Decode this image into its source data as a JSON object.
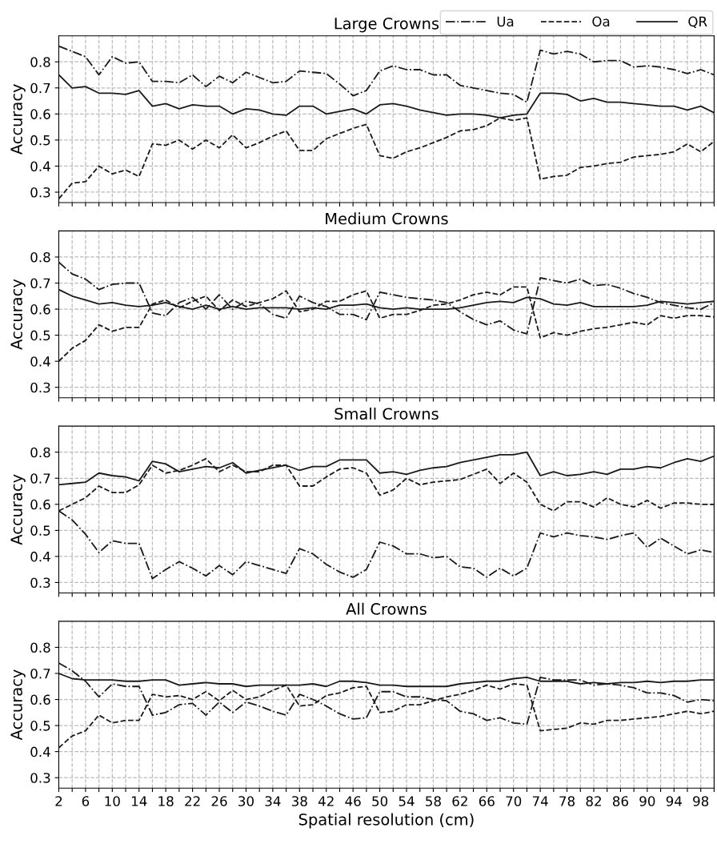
{
  "chart_data": [
    {
      "type": "line",
      "title": "Large Crowns",
      "ylabel": "Accuracy",
      "legend": "top right",
      "grid": true,
      "tick_labels": "y",
      "xlim": [
        2,
        100
      ],
      "ylim": [
        0.26,
        0.9
      ],
      "yticks": [
        0.3,
        0.4,
        0.5,
        0.6,
        0.7,
        0.8
      ],
      "x": [
        2,
        4,
        6,
        8,
        10,
        12,
        14,
        16,
        18,
        20,
        22,
        24,
        26,
        28,
        30,
        32,
        34,
        36,
        38,
        40,
        42,
        44,
        46,
        48,
        50,
        52,
        54,
        56,
        58,
        60,
        62,
        64,
        66,
        68,
        70,
        72,
        74,
        76,
        78,
        80,
        82,
        84,
        86,
        88,
        90,
        92,
        94,
        96,
        98,
        100
      ],
      "xticks": [
        2,
        {
          "value": 4,
          "label": null
        },
        6,
        {
          "value": 8,
          "label": null
        },
        10,
        {
          "value": 12,
          "label": null
        },
        14,
        {
          "value": 16,
          "label": null
        },
        18,
        {
          "value": 20,
          "label": null
        },
        22,
        {
          "value": 24,
          "label": null
        },
        26,
        {
          "value": 28,
          "label": null
        },
        30,
        {
          "value": 32,
          "label": null
        },
        34,
        {
          "value": 36,
          "label": null
        },
        38,
        {
          "value": 40,
          "label": null
        },
        42,
        {
          "value": 44,
          "label": null
        },
        46,
        {
          "value": 48,
          "label": null
        },
        50,
        {
          "value": 52,
          "label": null
        },
        54,
        {
          "value": 56,
          "label": null
        },
        58,
        {
          "value": 60,
          "label": null
        },
        62,
        {
          "value": 64,
          "label": null
        },
        66,
        {
          "value": 68,
          "label": null
        },
        70,
        {
          "value": 72,
          "label": null
        },
        74,
        {
          "value": 76,
          "label": null
        },
        78,
        {
          "value": 80,
          "label": null
        },
        82,
        {
          "value": 84,
          "label": null
        },
        86,
        {
          "value": 88,
          "label": null
        },
        90,
        {
          "value": 92,
          "label": null
        },
        94,
        {
          "value": 96,
          "label": null
        },
        98,
        {
          "value": 100,
          "label": null
        }
      ],
      "series": [
        {
          "name": "Ua",
          "color": "#1a1a1a",
          "line_style": "dashdot",
          "values": [
            0.86,
            0.84,
            0.82,
            0.75,
            0.82,
            0.795,
            0.8,
            0.725,
            0.725,
            0.72,
            0.75,
            0.705,
            0.745,
            0.72,
            0.76,
            0.74,
            0.72,
            0.725,
            0.765,
            0.76,
            0.755,
            0.715,
            0.67,
            0.69,
            0.765,
            0.785,
            0.77,
            0.77,
            0.75,
            0.75,
            0.71,
            0.7,
            0.69,
            0.68,
            0.675,
            0.645,
            0.845,
            0.83,
            0.84,
            0.83,
            0.8,
            0.805,
            0.805,
            0.78,
            0.785,
            0.78,
            0.77,
            0.755,
            0.77,
            0.75
          ]
        },
        {
          "name": "Oa",
          "color": "#1a1a1a",
          "line_style": "dashed",
          "values": [
            0.275,
            0.335,
            0.34,
            0.4,
            0.37,
            0.385,
            0.36,
            0.485,
            0.48,
            0.5,
            0.465,
            0.5,
            0.47,
            0.52,
            0.47,
            0.49,
            0.515,
            0.535,
            0.46,
            0.46,
            0.505,
            0.525,
            0.545,
            0.56,
            0.44,
            0.43,
            0.455,
            0.47,
            0.49,
            0.51,
            0.535,
            0.54,
            0.555,
            0.585,
            0.575,
            0.585,
            0.35,
            0.36,
            0.365,
            0.395,
            0.4,
            0.41,
            0.415,
            0.435,
            0.44,
            0.445,
            0.455,
            0.485,
            0.455,
            0.495
          ]
        },
        {
          "name": "QR",
          "color": "#1a1a1a",
          "line_style": "solid",
          "values": [
            0.75,
            0.7,
            0.705,
            0.68,
            0.68,
            0.675,
            0.69,
            0.63,
            0.64,
            0.62,
            0.635,
            0.63,
            0.63,
            0.6,
            0.62,
            0.615,
            0.6,
            0.595,
            0.63,
            0.63,
            0.6,
            0.61,
            0.62,
            0.6,
            0.635,
            0.64,
            0.63,
            0.615,
            0.605,
            0.595,
            0.6,
            0.6,
            0.595,
            0.585,
            0.595,
            0.6,
            0.68,
            0.68,
            0.675,
            0.65,
            0.66,
            0.645,
            0.645,
            0.64,
            0.635,
            0.63,
            0.63,
            0.615,
            0.63,
            0.605
          ]
        }
      ]
    },
    {
      "type": "line",
      "title": "Medium Crowns",
      "ylabel": "Accuracy",
      "grid": true,
      "tick_labels": "y",
      "xlim": [
        2,
        100
      ],
      "ylim": [
        0.26,
        0.9
      ],
      "yticks": [
        0.3,
        0.4,
        0.5,
        0.6,
        0.7,
        0.8
      ],
      "x": [
        2,
        4,
        6,
        8,
        10,
        12,
        14,
        16,
        18,
        20,
        22,
        24,
        26,
        28,
        30,
        32,
        34,
        36,
        38,
        40,
        42,
        44,
        46,
        48,
        50,
        52,
        54,
        56,
        58,
        60,
        62,
        64,
        66,
        68,
        70,
        72,
        74,
        76,
        78,
        80,
        82,
        84,
        86,
        88,
        90,
        92,
        94,
        96,
        98,
        100
      ],
      "xticks": [
        2,
        {
          "value": 4,
          "label": null
        },
        6,
        {
          "value": 8,
          "label": null
        },
        10,
        {
          "value": 12,
          "label": null
        },
        14,
        {
          "value": 16,
          "label": null
        },
        18,
        {
          "value": 20,
          "label": null
        },
        22,
        {
          "value": 24,
          "label": null
        },
        26,
        {
          "value": 28,
          "label": null
        },
        30,
        {
          "value": 32,
          "label": null
        },
        34,
        {
          "value": 36,
          "label": null
        },
        38,
        {
          "value": 40,
          "label": null
        },
        42,
        {
          "value": 44,
          "label": null
        },
        46,
        {
          "value": 48,
          "label": null
        },
        50,
        {
          "value": 52,
          "label": null
        },
        54,
        {
          "value": 56,
          "label": null
        },
        58,
        {
          "value": 60,
          "label": null
        },
        62,
        {
          "value": 64,
          "label": null
        },
        66,
        {
          "value": 68,
          "label": null
        },
        70,
        {
          "value": 72,
          "label": null
        },
        74,
        {
          "value": 76,
          "label": null
        },
        78,
        {
          "value": 80,
          "label": null
        },
        82,
        {
          "value": 84,
          "label": null
        },
        86,
        {
          "value": 88,
          "label": null
        },
        90,
        {
          "value": 92,
          "label": null
        },
        94,
        {
          "value": 96,
          "label": null
        },
        98,
        {
          "value": 100,
          "label": null
        }
      ],
      "series": [
        {
          "color": "#1a1a1a",
          "line_style": "dashdot",
          "values": [
            0.78,
            0.735,
            0.715,
            0.675,
            0.695,
            0.7,
            0.7,
            0.585,
            0.575,
            0.625,
            0.645,
            0.6,
            0.655,
            0.6,
            0.63,
            0.62,
            0.58,
            0.565,
            0.65,
            0.625,
            0.61,
            0.58,
            0.58,
            0.56,
            0.665,
            0.655,
            0.645,
            0.64,
            0.635,
            0.625,
            0.59,
            0.56,
            0.54,
            0.555,
            0.52,
            0.505,
            0.72,
            0.71,
            0.7,
            0.715,
            0.69,
            0.695,
            0.68,
            0.66,
            0.645,
            0.625,
            0.615,
            0.605,
            0.6,
            0.625
          ]
        },
        {
          "color": "#1a1a1a",
          "line_style": "dashed",
          "values": [
            0.4,
            0.45,
            0.48,
            0.54,
            0.515,
            0.53,
            0.53,
            0.62,
            0.635,
            0.605,
            0.63,
            0.65,
            0.595,
            0.635,
            0.61,
            0.625,
            0.64,
            0.67,
            0.59,
            0.6,
            0.63,
            0.63,
            0.655,
            0.67,
            0.565,
            0.58,
            0.58,
            0.595,
            0.615,
            0.62,
            0.635,
            0.655,
            0.665,
            0.655,
            0.685,
            0.685,
            0.49,
            0.51,
            0.5,
            0.515,
            0.525,
            0.53,
            0.54,
            0.55,
            0.54,
            0.575,
            0.565,
            0.575,
            0.575,
            0.57
          ]
        },
        {
          "color": "#1a1a1a",
          "line_style": "solid",
          "values": [
            0.675,
            0.65,
            0.635,
            0.62,
            0.625,
            0.615,
            0.61,
            0.615,
            0.625,
            0.61,
            0.6,
            0.615,
            0.6,
            0.61,
            0.6,
            0.605,
            0.605,
            0.605,
            0.6,
            0.605,
            0.6,
            0.615,
            0.615,
            0.62,
            0.605,
            0.6,
            0.605,
            0.6,
            0.6,
            0.6,
            0.605,
            0.615,
            0.625,
            0.63,
            0.625,
            0.645,
            0.64,
            0.62,
            0.615,
            0.625,
            0.61,
            0.61,
            0.61,
            0.61,
            0.615,
            0.63,
            0.625,
            0.62,
            0.625,
            0.63
          ]
        }
      ]
    },
    {
      "type": "line",
      "title": "Small Crowns",
      "ylabel": "Accuracy",
      "grid": true,
      "tick_labels": "y",
      "xlim": [
        2,
        100
      ],
      "ylim": [
        0.26,
        0.9
      ],
      "yticks": [
        0.3,
        0.4,
        0.5,
        0.6,
        0.7,
        0.8
      ],
      "x": [
        2,
        4,
        6,
        8,
        10,
        12,
        14,
        16,
        18,
        20,
        22,
        24,
        26,
        28,
        30,
        32,
        34,
        36,
        38,
        40,
        42,
        44,
        46,
        48,
        50,
        52,
        54,
        56,
        58,
        60,
        62,
        64,
        66,
        68,
        70,
        72,
        74,
        76,
        78,
        80,
        82,
        84,
        86,
        88,
        90,
        92,
        94,
        96,
        98,
        100
      ],
      "xticks": [
        2,
        {
          "value": 4,
          "label": null
        },
        6,
        {
          "value": 8,
          "label": null
        },
        10,
        {
          "value": 12,
          "label": null
        },
        14,
        {
          "value": 16,
          "label": null
        },
        18,
        {
          "value": 20,
          "label": null
        },
        22,
        {
          "value": 24,
          "label": null
        },
        26,
        {
          "value": 28,
          "label": null
        },
        30,
        {
          "value": 32,
          "label": null
        },
        34,
        {
          "value": 36,
          "label": null
        },
        38,
        {
          "value": 40,
          "label": null
        },
        42,
        {
          "value": 44,
          "label": null
        },
        46,
        {
          "value": 48,
          "label": null
        },
        50,
        {
          "value": 52,
          "label": null
        },
        54,
        {
          "value": 56,
          "label": null
        },
        58,
        {
          "value": 60,
          "label": null
        },
        62,
        {
          "value": 64,
          "label": null
        },
        66,
        {
          "value": 68,
          "label": null
        },
        70,
        {
          "value": 72,
          "label": null
        },
        74,
        {
          "value": 76,
          "label": null
        },
        78,
        {
          "value": 80,
          "label": null
        },
        82,
        {
          "value": 84,
          "label": null
        },
        86,
        {
          "value": 88,
          "label": null
        },
        90,
        {
          "value": 92,
          "label": null
        },
        94,
        {
          "value": 96,
          "label": null
        },
        98,
        {
          "value": 100,
          "label": null
        }
      ],
      "series": [
        {
          "color": "#1a1a1a",
          "line_style": "dashdot",
          "values": [
            0.575,
            0.54,
            0.485,
            0.415,
            0.46,
            0.45,
            0.45,
            0.315,
            0.35,
            0.38,
            0.355,
            0.325,
            0.365,
            0.33,
            0.38,
            0.365,
            0.35,
            0.335,
            0.43,
            0.41,
            0.37,
            0.34,
            0.32,
            0.35,
            0.455,
            0.44,
            0.41,
            0.41,
            0.395,
            0.4,
            0.36,
            0.355,
            0.32,
            0.355,
            0.325,
            0.355,
            0.49,
            0.475,
            0.49,
            0.48,
            0.475,
            0.465,
            0.48,
            0.49,
            0.435,
            0.47,
            0.44,
            0.41,
            0.425,
            0.415
          ]
        },
        {
          "color": "#1a1a1a",
          "line_style": "dashed",
          "values": [
            0.575,
            0.6,
            0.625,
            0.67,
            0.645,
            0.645,
            0.675,
            0.75,
            0.72,
            0.73,
            0.75,
            0.775,
            0.725,
            0.75,
            0.725,
            0.725,
            0.75,
            0.75,
            0.67,
            0.67,
            0.705,
            0.735,
            0.74,
            0.72,
            0.635,
            0.655,
            0.7,
            0.675,
            0.685,
            0.69,
            0.695,
            0.715,
            0.735,
            0.68,
            0.72,
            0.685,
            0.6,
            0.575,
            0.61,
            0.61,
            0.59,
            0.625,
            0.6,
            0.59,
            0.615,
            0.585,
            0.605,
            0.605,
            0.6,
            0.6
          ]
        },
        {
          "color": "#1a1a1a",
          "line_style": "solid",
          "values": [
            0.675,
            0.68,
            0.685,
            0.72,
            0.71,
            0.705,
            0.69,
            0.765,
            0.755,
            0.725,
            0.735,
            0.745,
            0.74,
            0.76,
            0.72,
            0.73,
            0.74,
            0.75,
            0.73,
            0.745,
            0.745,
            0.77,
            0.77,
            0.77,
            0.72,
            0.725,
            0.715,
            0.73,
            0.74,
            0.745,
            0.76,
            0.77,
            0.78,
            0.79,
            0.79,
            0.8,
            0.71,
            0.725,
            0.71,
            0.715,
            0.725,
            0.715,
            0.735,
            0.735,
            0.745,
            0.74,
            0.76,
            0.775,
            0.765,
            0.785
          ]
        }
      ]
    },
    {
      "type": "line",
      "title": "All Crowns",
      "xlabel": "Spatial resolution (cm)",
      "ylabel": "Accuracy",
      "grid": true,
      "xlim": [
        2,
        100
      ],
      "ylim": [
        0.26,
        0.9
      ],
      "yticks": [
        0.3,
        0.4,
        0.5,
        0.6,
        0.7,
        0.8
      ],
      "x": [
        2,
        4,
        6,
        8,
        10,
        12,
        14,
        16,
        18,
        20,
        22,
        24,
        26,
        28,
        30,
        32,
        34,
        36,
        38,
        40,
        42,
        44,
        46,
        48,
        50,
        52,
        54,
        56,
        58,
        60,
        62,
        64,
        66,
        68,
        70,
        72,
        74,
        76,
        78,
        80,
        82,
        84,
        86,
        88,
        90,
        92,
        94,
        96,
        98,
        100
      ],
      "xticks": [
        2,
        {
          "value": 4,
          "label": null
        },
        6,
        {
          "value": 8,
          "label": null
        },
        10,
        {
          "value": 12,
          "label": null
        },
        14,
        {
          "value": 16,
          "label": null
        },
        18,
        {
          "value": 20,
          "label": null
        },
        22,
        {
          "value": 24,
          "label": null
        },
        26,
        {
          "value": 28,
          "label": null
        },
        30,
        {
          "value": 32,
          "label": null
        },
        34,
        {
          "value": 36,
          "label": null
        },
        38,
        {
          "value": 40,
          "label": null
        },
        42,
        {
          "value": 44,
          "label": null
        },
        46,
        {
          "value": 48,
          "label": null
        },
        50,
        {
          "value": 52,
          "label": null
        },
        54,
        {
          "value": 56,
          "label": null
        },
        58,
        {
          "value": 60,
          "label": null
        },
        62,
        {
          "value": 64,
          "label": null
        },
        66,
        {
          "value": 68,
          "label": null
        },
        70,
        {
          "value": 72,
          "label": null
        },
        74,
        {
          "value": 76,
          "label": null
        },
        78,
        {
          "value": 80,
          "label": null
        },
        82,
        {
          "value": 84,
          "label": null
        },
        86,
        {
          "value": 88,
          "label": null
        },
        90,
        {
          "value": 92,
          "label": null
        },
        94,
        {
          "value": 96,
          "label": null
        },
        98,
        {
          "value": 100,
          "label": null
        }
      ],
      "series": [
        {
          "color": "#1a1a1a",
          "line_style": "dashdot",
          "values": [
            0.74,
            0.71,
            0.67,
            0.61,
            0.66,
            0.65,
            0.65,
            0.54,
            0.55,
            0.58,
            0.585,
            0.54,
            0.59,
            0.55,
            0.59,
            0.575,
            0.555,
            0.54,
            0.62,
            0.6,
            0.575,
            0.545,
            0.525,
            0.53,
            0.63,
            0.63,
            0.61,
            0.61,
            0.6,
            0.595,
            0.555,
            0.545,
            0.52,
            0.53,
            0.51,
            0.505,
            0.685,
            0.675,
            0.675,
            0.675,
            0.655,
            0.66,
            0.655,
            0.645,
            0.625,
            0.625,
            0.615,
            0.59,
            0.6,
            0.595
          ]
        },
        {
          "color": "#1a1a1a",
          "line_style": "dashed",
          "values": [
            0.415,
            0.46,
            0.48,
            0.54,
            0.51,
            0.52,
            0.52,
            0.62,
            0.61,
            0.615,
            0.6,
            0.63,
            0.595,
            0.635,
            0.6,
            0.61,
            0.635,
            0.655,
            0.575,
            0.58,
            0.615,
            0.625,
            0.645,
            0.65,
            0.55,
            0.555,
            0.58,
            0.58,
            0.595,
            0.61,
            0.62,
            0.635,
            0.655,
            0.64,
            0.66,
            0.655,
            0.48,
            0.485,
            0.49,
            0.51,
            0.505,
            0.52,
            0.52,
            0.525,
            0.53,
            0.535,
            0.545,
            0.555,
            0.545,
            0.555
          ]
        },
        {
          "color": "#1a1a1a",
          "line_style": "solid",
          "values": [
            0.7,
            0.68,
            0.675,
            0.675,
            0.675,
            0.67,
            0.67,
            0.675,
            0.675,
            0.655,
            0.66,
            0.665,
            0.66,
            0.66,
            0.65,
            0.655,
            0.655,
            0.655,
            0.655,
            0.66,
            0.65,
            0.67,
            0.67,
            0.665,
            0.655,
            0.655,
            0.65,
            0.65,
            0.65,
            0.65,
            0.66,
            0.665,
            0.67,
            0.67,
            0.68,
            0.685,
            0.67,
            0.67,
            0.67,
            0.66,
            0.665,
            0.66,
            0.665,
            0.665,
            0.67,
            0.665,
            0.67,
            0.67,
            0.675,
            0.675
          ]
        }
      ]
    }
  ]
}
